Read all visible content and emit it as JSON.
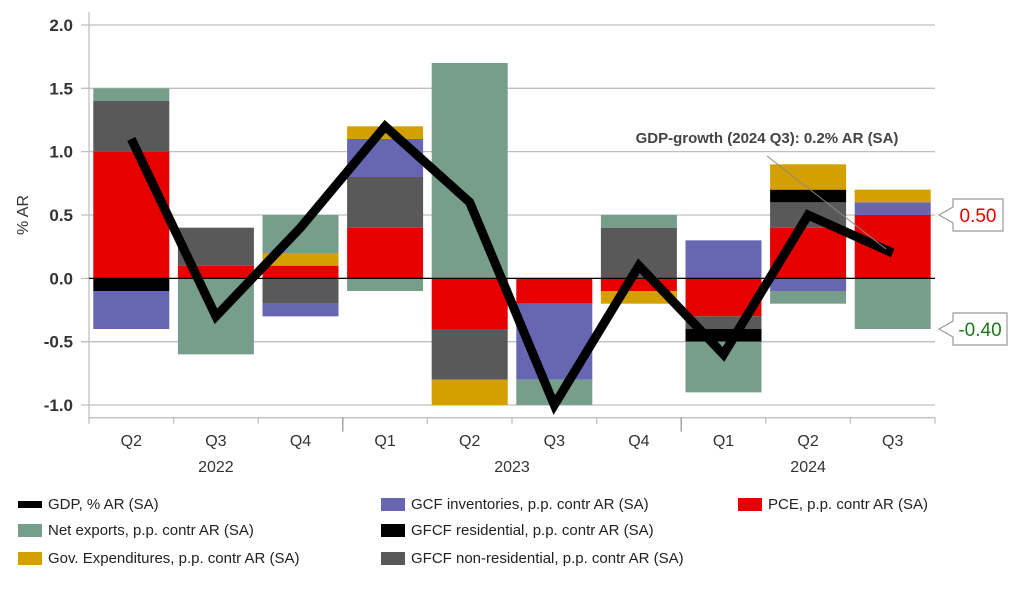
{
  "chart_data": {
    "type": "bar",
    "stacked": true,
    "title": "",
    "ylabel": "% AR",
    "xlabel": "",
    "ylim": [
      -1.1,
      2.1
    ],
    "yticks": [
      2.0,
      1.5,
      1.0,
      0.5,
      0.0,
      -0.5,
      -1.0
    ],
    "ytick_labels": [
      "2.0",
      "1.5",
      "1.0",
      "0.5",
      "0.0",
      "-0.5",
      "-1.0"
    ],
    "grid": true,
    "categories": [
      "Q2",
      "Q3",
      "Q4",
      "Q1",
      "Q2",
      "Q3",
      "Q4",
      "Q1",
      "Q2",
      "Q3"
    ],
    "years": [
      {
        "label": "2022",
        "first": 0,
        "last": 2
      },
      {
        "label": "2023",
        "first": 3,
        "last": 6
      },
      {
        "label": "2024",
        "first": 7,
        "last": 9
      }
    ],
    "series": [
      {
        "key": "pce",
        "name": "PCE, p.p. contr AR (SA)",
        "color": "#e60000",
        "values": [
          1.0,
          0.1,
          0.1,
          0.4,
          -0.4,
          -0.2,
          -0.1,
          -0.3,
          0.4,
          0.5
        ]
      },
      {
        "key": "nonres",
        "name": "GFCF non-residential, p.p. contr AR (SA)",
        "color": "#595959",
        "values": [
          0.4,
          0.3,
          -0.2,
          0.4,
          -0.4,
          0.0,
          0.4,
          -0.1,
          0.2,
          0.0
        ]
      },
      {
        "key": "res",
        "name": "GFCF residential, p.p. contr AR (SA)",
        "color": "#000000",
        "values": [
          -0.1,
          0.0,
          0.0,
          0.0,
          0.0,
          0.0,
          0.0,
          -0.1,
          0.1,
          0.0
        ]
      },
      {
        "key": "inv",
        "name": "GCF inventories, p.p. contr AR (SA)",
        "color": "#6666b3",
        "values": [
          -0.3,
          0.0,
          -0.1,
          0.3,
          0.0,
          -0.6,
          0.0,
          0.3,
          -0.1,
          0.1
        ]
      },
      {
        "key": "gov",
        "name": "Gov. Expenditures, p.p. contr AR (SA)",
        "color": "#d4a000",
        "values": [
          0.0,
          0.0,
          0.1,
          0.1,
          -0.2,
          0.0,
          -0.1,
          0.0,
          0.2,
          0.1
        ]
      },
      {
        "key": "netx",
        "name": "Net exports, p.p. contr AR (SA)",
        "color": "#779e8a",
        "values": [
          0.1,
          -0.6,
          0.3,
          -0.1,
          1.7,
          -0.2,
          0.1,
          -0.4,
          -0.1,
          -0.4
        ]
      }
    ],
    "line": {
      "name": "GDP, % AR (SA)",
      "color": "#000000",
      "values": [
        1.1,
        -0.3,
        0.4,
        1.2,
        0.6,
        -1.0,
        0.1,
        -0.6,
        0.5,
        0.2
      ]
    },
    "annotations": {
      "gdp_note": "GDP-growth (2024 Q3): 0.2% AR (SA)",
      "callout_pce": {
        "text": "0.50",
        "value": 0.5,
        "color": "#e60000"
      },
      "callout_netx": {
        "text": "-0.40",
        "value": -0.4,
        "color": "#1a7a1a"
      }
    },
    "legend_position": "bottom"
  },
  "legend": {
    "items": [
      {
        "label": "GDP, % AR (SA)",
        "color": "#000000",
        "kind": "line"
      },
      {
        "label": "GCF inventories, p.p. contr AR (SA)",
        "color": "#6666b3",
        "kind": "box"
      },
      {
        "label": "PCE, p.p. contr AR (SA)",
        "color": "#e60000",
        "kind": "box"
      },
      {
        "label": "Net exports, p.p. contr AR (SA)",
        "color": "#779e8a",
        "kind": "box"
      },
      {
        "label": "GFCF residential, p.p. contr AR (SA)",
        "color": "#000000",
        "kind": "box"
      },
      {
        "label": "Gov. Expenditures, p.p. contr AR (SA)",
        "color": "#d4a000",
        "kind": "box"
      },
      {
        "label": "GFCF non-residential, p.p. contr AR (SA)",
        "color": "#595959",
        "kind": "box"
      }
    ]
  }
}
